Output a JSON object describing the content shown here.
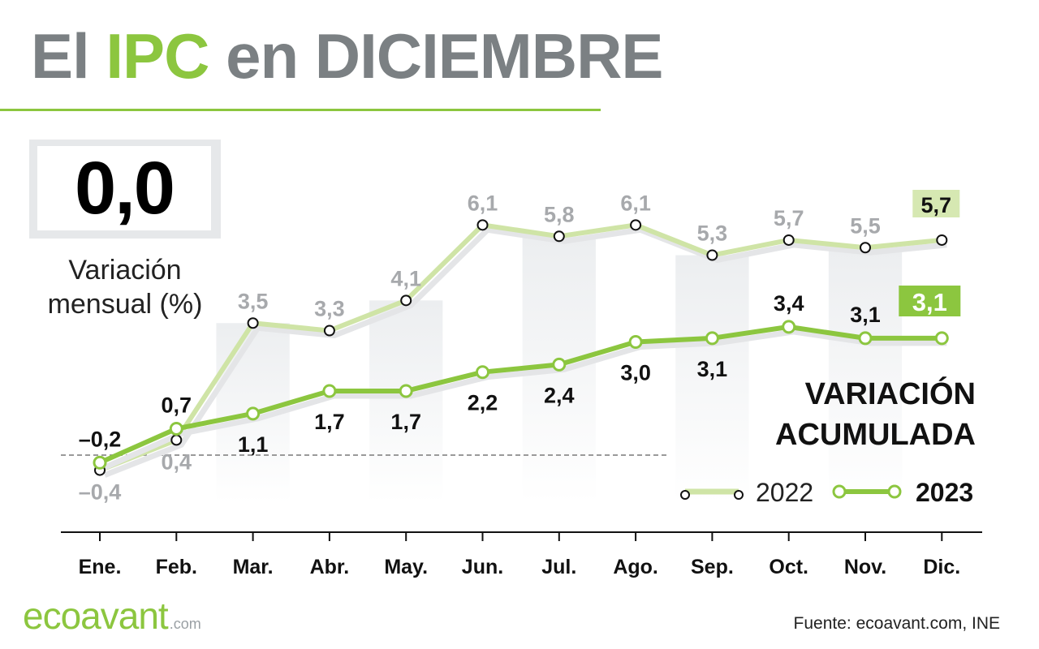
{
  "header": {
    "title_prefix": "El ",
    "title_highlight": "IPC",
    "title_suffix": " en DICIEMBRE"
  },
  "kpi": {
    "value": "0,0",
    "caption_line1": "Variación",
    "caption_line2": "mensual (%)"
  },
  "footer": {
    "logo_main": "ecoavant",
    "logo_domain": ".com",
    "source": "Fuente: ecoavant.com, INE"
  },
  "colors": {
    "accent": "#8cc63f",
    "series_2022": "#cfe4a6",
    "series_2023": "#8cc63f",
    "title_gray": "#7b8083",
    "label_gray": "#a7a9ac"
  },
  "chart_data": {
    "type": "line",
    "categories": [
      "Ene.",
      "Feb.",
      "Mar.",
      "Abr.",
      "May.",
      "Jun.",
      "Jul.",
      "Ago.",
      "Sep.",
      "Oct.",
      "Nov.",
      "Dic."
    ],
    "panel_title_line1": "VARIACIÓN",
    "panel_title_line2": "ACUMULADA",
    "series": [
      {
        "name": "2022",
        "values": [
          -0.4,
          0.4,
          3.5,
          3.3,
          4.1,
          6.1,
          5.8,
          6.1,
          5.3,
          5.7,
          5.5,
          5.7
        ],
        "labels": [
          "–0,4",
          "0,4",
          "3,5",
          "3,3",
          "4,1",
          "6,1",
          "5,8",
          "6,1",
          "5,3",
          "5,7",
          "5,5",
          "5,7"
        ]
      },
      {
        "name": "2023",
        "values": [
          -0.2,
          0.7,
          1.1,
          1.7,
          1.7,
          2.2,
          2.4,
          3.0,
          3.1,
          3.4,
          3.1,
          3.1
        ],
        "labels": [
          "–0,2",
          "0,7",
          "1,1",
          "1,7",
          "1,7",
          "2,2",
          "2,4",
          "3,0",
          "3,1",
          "3,4",
          "3,1",
          "3,1"
        ]
      }
    ],
    "ylim": [
      -0.4,
      6.1
    ],
    "zero_line": "dashed",
    "legend_position": "bottom-right"
  }
}
